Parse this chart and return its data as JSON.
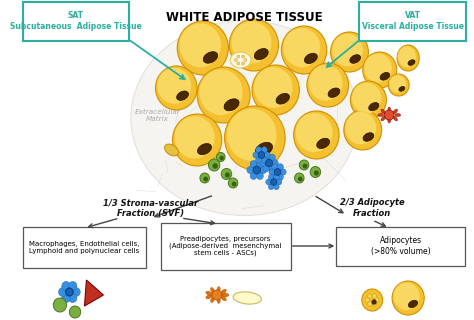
{
  "title": "WHITE ADIPOSE TISSUE",
  "title_fontsize": 8.5,
  "title_color": "#000000",
  "bg_color": "#ffffff",
  "sat_label": "SAT\nSubcutaneous  Adipose Tissue",
  "vat_label": "VAT\nVisceral Adipose Tissue",
  "box_edge_color": "#2aafa0",
  "box_text_color": "#2aafa0",
  "extracellular_label": "Extracellular\nMatrix",
  "svf_label": "1/3 Stroma-vascular\nFraction (SVF)",
  "adipocyte_fraction_label": "2/3 Adipocyte\nFraction",
  "box1_text": "Macrophages, Endothelial cells,\nLymphoid and polynuclear cells",
  "box2_text": "Preadipocytes, precursors\n(Adipose-derived  mesenchymal\nstem cells - ASCs)",
  "box3_text": "Adipocytes\n(>80% volume)",
  "teal": "#2aafa0",
  "dark": "#333333",
  "adipocyte_outer": "#f5c030",
  "adipocyte_inner": "#f8d860",
  "adipocyte_edge": "#d09000",
  "nucleus_color": "#4a2800",
  "nucleus_edge": "#2a1000",
  "green_cell": "#7ab040",
  "green_edge": "#4a7820",
  "blue_cell": "#1a60b0",
  "blue_edge": "#083878",
  "blue_light": "#3a90e0",
  "red_cell": "#c03020",
  "red_edge": "#800000",
  "orange_cell": "#e07818",
  "cream_cell": "#fffacc",
  "cream_edge": "#c8b860"
}
